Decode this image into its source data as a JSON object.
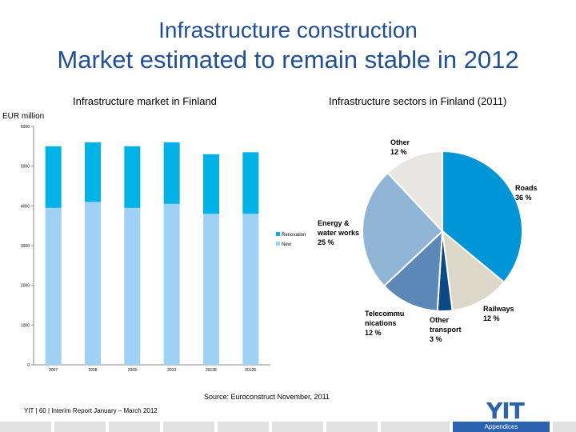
{
  "header": {
    "title": "Infrastructure construction",
    "subtitle": "Market estimated to remain stable in 2012"
  },
  "left_chart_title": "Infrastructure market in Finland",
  "right_chart_title": "Infrastructure sectors in Finland (2011)",
  "unit_label": "EUR million",
  "source": "Source: Euroconstruct November, 2011",
  "footer": "YIT  |  60  |  Interim Report January – March 2012",
  "logo_text": "YIT",
  "appendices": "Appendices",
  "colors": {
    "title": "#1f4e9a",
    "renovation": "#00b2e6",
    "new": "#9ed1f3"
  },
  "chart_data": [
    {
      "type": "bar",
      "stacked": true,
      "title": "Infrastructure market in Finland",
      "ylabel": "EUR million",
      "categories": [
        "2007",
        "2008",
        "2009",
        "2010",
        "2011E",
        "2012E"
      ],
      "ylim": [
        0,
        6000
      ],
      "yticks": [
        0,
        1000,
        2000,
        3000,
        4000,
        5000,
        6000
      ],
      "series": [
        {
          "name": "New",
          "color": "#9ed1f3",
          "values": [
            3950,
            4100,
            3950,
            4050,
            3800,
            3800
          ]
        },
        {
          "name": "Renovation",
          "color": "#00b2e6",
          "values": [
            1550,
            1500,
            1550,
            1550,
            1500,
            1550
          ]
        }
      ],
      "legend": "right"
    },
    {
      "type": "pie",
      "title": "Infrastructure sectors in Finland (2011)",
      "slices": [
        {
          "label": "Roads",
          "pct": "36 %",
          "value": 36,
          "color": "#0095d6"
        },
        {
          "label": "Railways",
          "pct": "12 %",
          "value": 12,
          "color": "#ddd7c9"
        },
        {
          "label": "Other transport",
          "pct": "3 %",
          "value": 3,
          "color": "#0b4a8a"
        },
        {
          "label": "Telecommunications",
          "pct": "12 %",
          "value": 12,
          "color": "#5c88b8"
        },
        {
          "label": "Energy & water works",
          "pct": "25 %",
          "value": 25,
          "color": "#8fb4d4"
        },
        {
          "label": "Other",
          "pct": "12 %",
          "value": 12,
          "color": "#e8e6e2"
        }
      ]
    }
  ]
}
